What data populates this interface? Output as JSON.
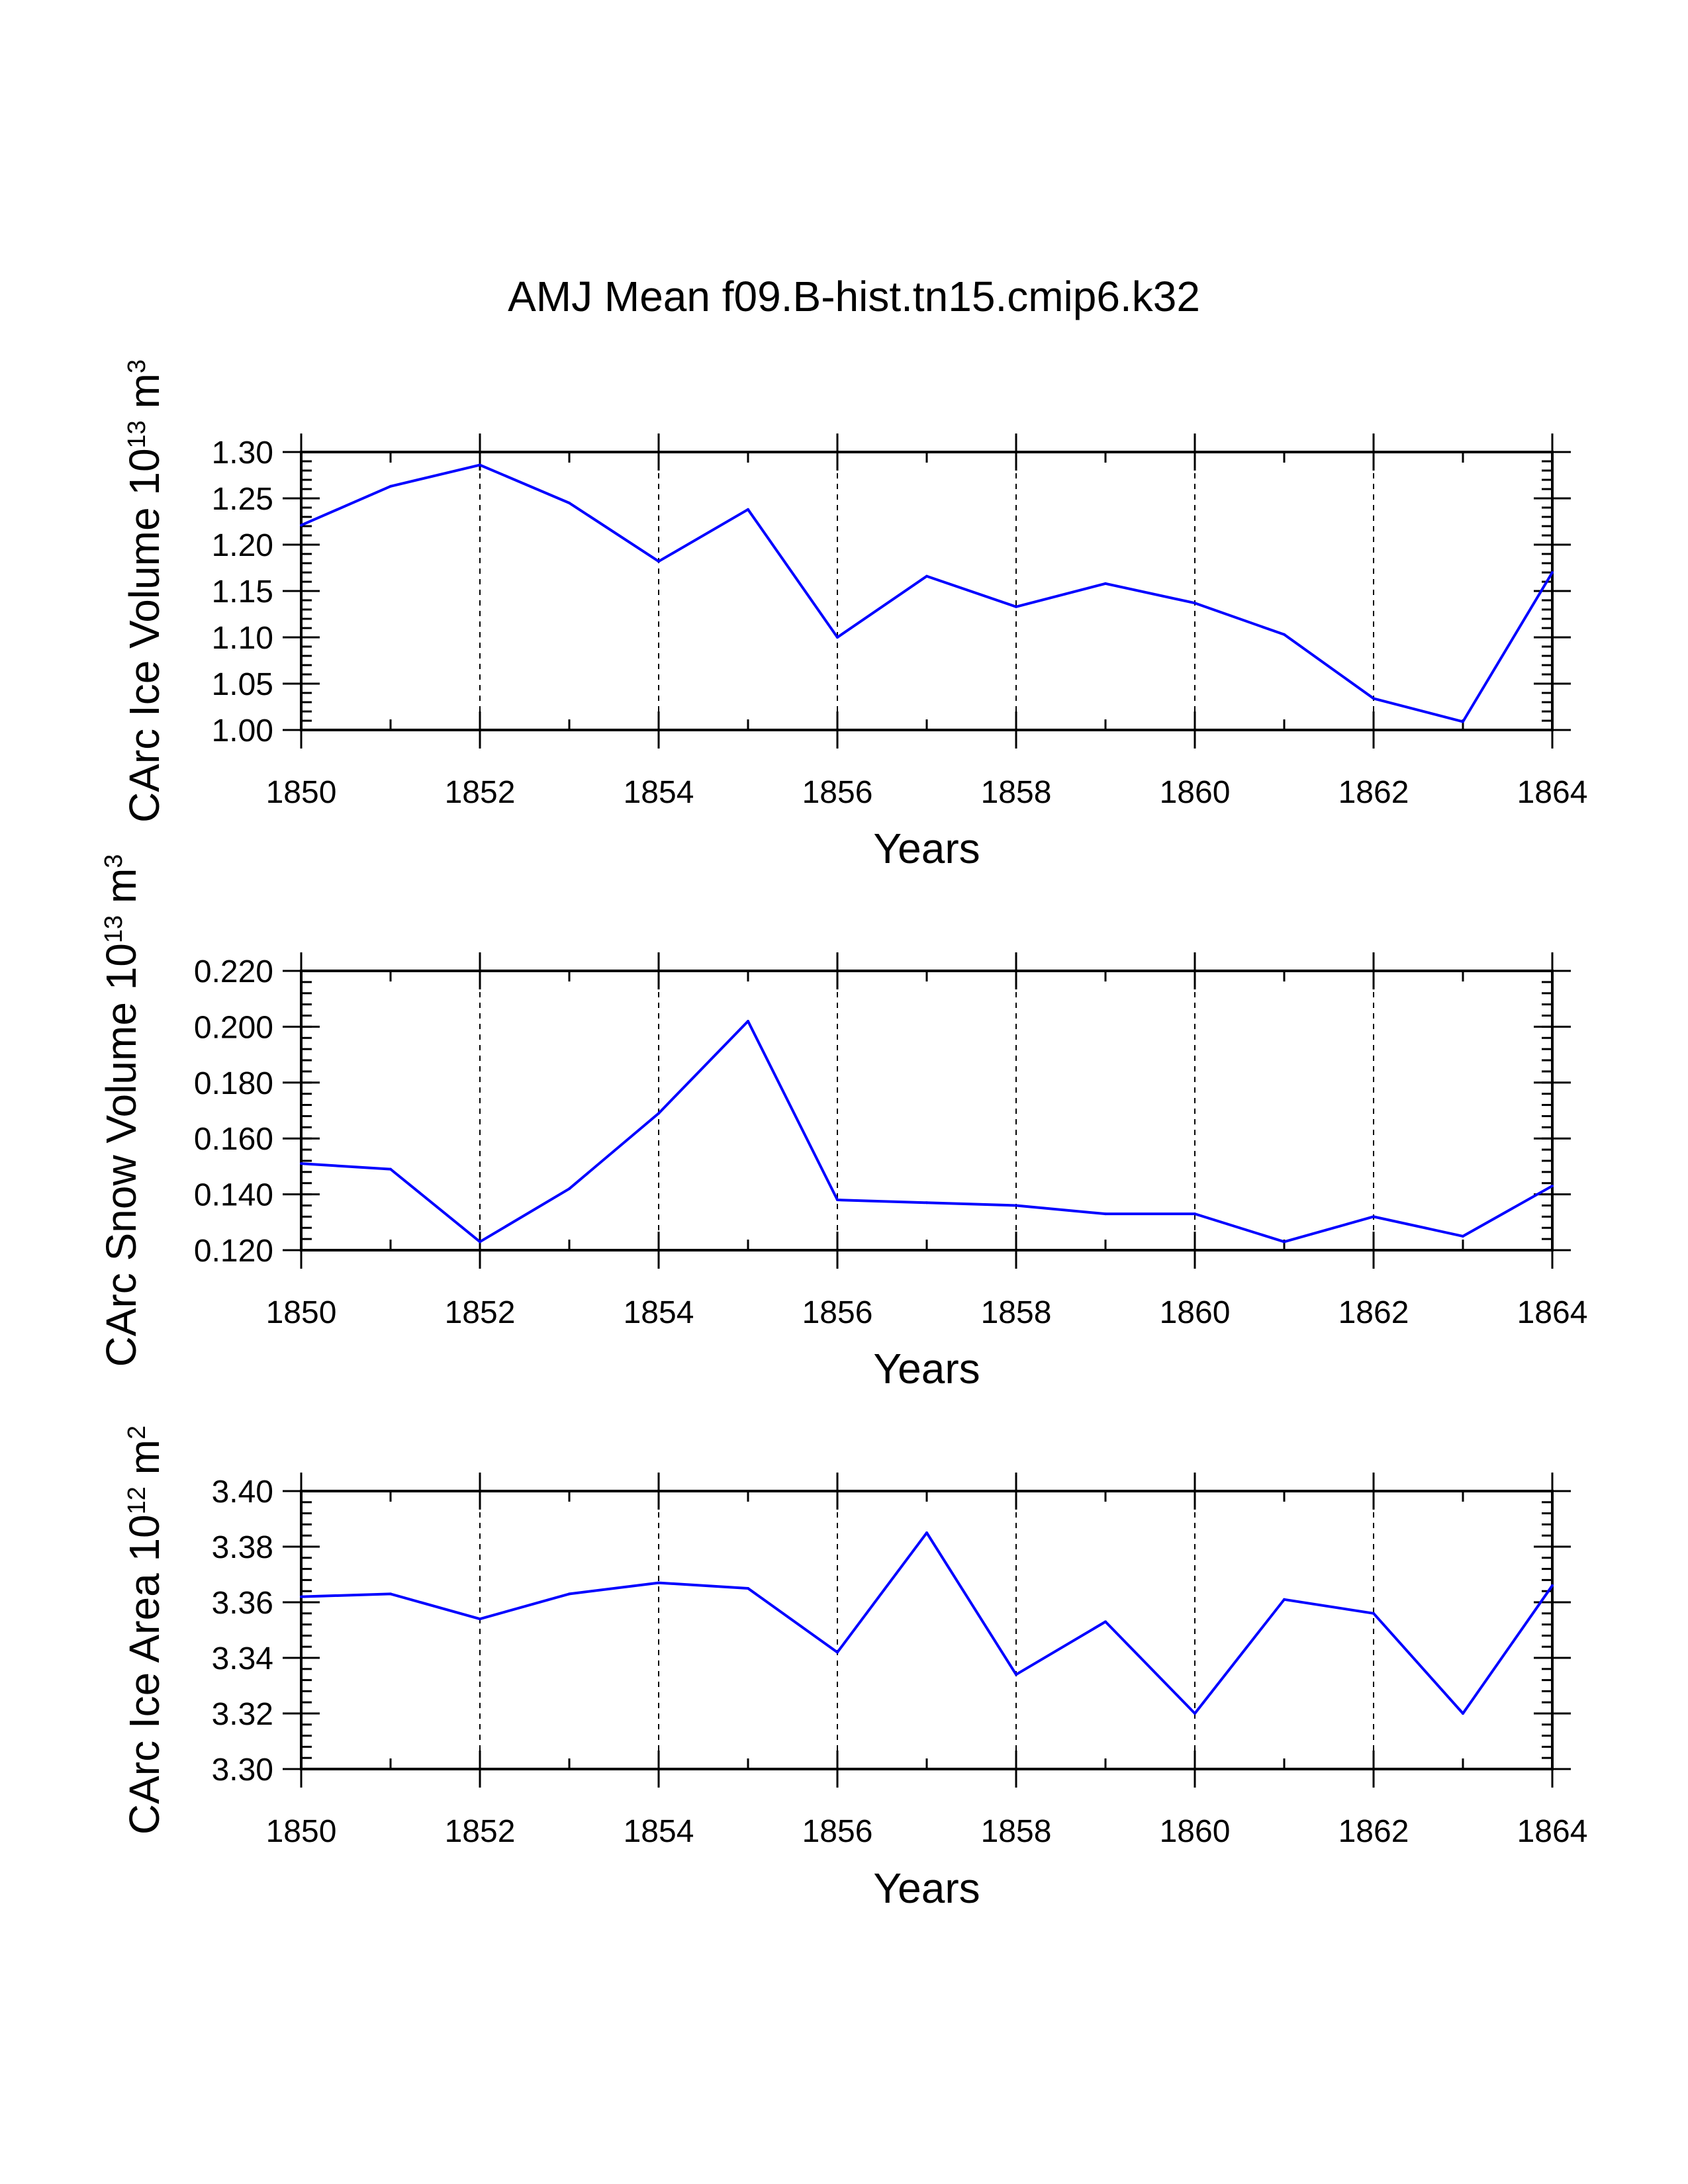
{
  "title": "AMJ Mean f09.B-hist.tn15.cmip6.k32",
  "colors": {
    "line": "#0000ff",
    "axis": "#000000",
    "grid": "#000000",
    "background": "#ffffff"
  },
  "chart_data": [
    {
      "type": "line",
      "ylabel": {
        "text": "CArc Ice Volume 10",
        "exponent": "13",
        "unit": " m",
        "unit_exponent": "3"
      },
      "xlabel": "Years",
      "xlim": [
        1850,
        1864
      ],
      "ylim": [
        1.0,
        1.3
      ],
      "yticks": [
        "1.00",
        "1.05",
        "1.10",
        "1.15",
        "1.20",
        "1.25",
        "1.30"
      ],
      "yminor": 0.01,
      "xticks": [
        "1850",
        "1852",
        "1854",
        "1856",
        "1858",
        "1860",
        "1862",
        "1864"
      ],
      "vgrid": [
        1852,
        1854,
        1856,
        1858,
        1860,
        1862
      ],
      "x": [
        1850,
        1851,
        1852,
        1853,
        1854,
        1855,
        1856,
        1857,
        1858,
        1859,
        1860,
        1861,
        1862,
        1863,
        1864
      ],
      "series": [
        {
          "name": "CArc Ice Volume",
          "values": [
            1.221,
            1.263,
            1.286,
            1.245,
            1.182,
            1.238,
            1.1,
            1.166,
            1.133,
            1.158,
            1.137,
            1.103,
            1.034,
            1.009,
            1.17
          ]
        }
      ]
    },
    {
      "type": "line",
      "ylabel": {
        "text": "CArc Snow Volume 10",
        "exponent": "13",
        "unit": " m",
        "unit_exponent": "3"
      },
      "xlabel": "Years",
      "xlim": [
        1850,
        1864
      ],
      "ylim": [
        0.12,
        0.22
      ],
      "yticks": [
        "0.120",
        "0.140",
        "0.160",
        "0.180",
        "0.200",
        "0.220"
      ],
      "yminor": 0.004,
      "xticks": [
        "1850",
        "1852",
        "1854",
        "1856",
        "1858",
        "1860",
        "1862",
        "1864"
      ],
      "vgrid": [
        1852,
        1854,
        1856,
        1858,
        1860,
        1862
      ],
      "x": [
        1850,
        1851,
        1852,
        1853,
        1854,
        1855,
        1856,
        1857,
        1858,
        1859,
        1860,
        1861,
        1862,
        1863,
        1864
      ],
      "series": [
        {
          "name": "CArc Snow Volume",
          "values": [
            0.151,
            0.149,
            0.123,
            0.142,
            0.169,
            0.202,
            0.138,
            0.137,
            0.136,
            0.133,
            0.133,
            0.123,
            0.132,
            0.125,
            0.143
          ]
        }
      ]
    },
    {
      "type": "line",
      "ylabel": {
        "text": "CArc Ice Area 10",
        "exponent": "12",
        "unit": " m",
        "unit_exponent": "2"
      },
      "xlabel": "Years",
      "xlim": [
        1850,
        1864
      ],
      "ylim": [
        3.3,
        3.4
      ],
      "yticks": [
        "3.30",
        "3.32",
        "3.34",
        "3.36",
        "3.38",
        "3.40"
      ],
      "yminor": 0.004,
      "xticks": [
        "1850",
        "1852",
        "1854",
        "1856",
        "1858",
        "1860",
        "1862",
        "1864"
      ],
      "vgrid": [
        1852,
        1854,
        1856,
        1858,
        1860,
        1862
      ],
      "x": [
        1850,
        1851,
        1852,
        1853,
        1854,
        1855,
        1856,
        1857,
        1858,
        1859,
        1860,
        1861,
        1862,
        1863,
        1864
      ],
      "series": [
        {
          "name": "CArc Ice Area",
          "values": [
            3.362,
            3.363,
            3.354,
            3.363,
            3.367,
            3.365,
            3.342,
            3.385,
            3.334,
            3.353,
            3.32,
            3.361,
            3.356,
            3.32,
            3.366
          ]
        }
      ]
    }
  ]
}
